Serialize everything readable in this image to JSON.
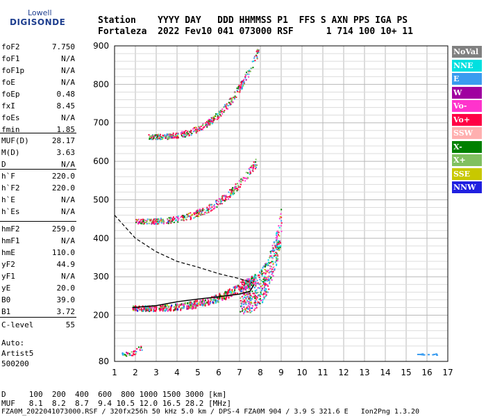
{
  "logo": {
    "brand": "Lowell",
    "name": "DIGISONDE"
  },
  "header": {
    "line1": "Station    YYYY DAY   DDD HHMMSS P1  FFS S AXN PPS IGA PS",
    "line2": "Fortaleza  2022 Fev10 041 073000 RSF      1 714 100 10+ 11"
  },
  "params": [
    {
      "name": "foF2",
      "value": "7.750"
    },
    {
      "name": "foF1",
      "value": "N/A"
    },
    {
      "name": "foF1p",
      "value": "N/A"
    },
    {
      "name": "foE",
      "value": "N/A"
    },
    {
      "name": "foEp",
      "value": "0.48"
    },
    {
      "name": "fxI",
      "value": "8.45"
    },
    {
      "name": "foEs",
      "value": "N/A"
    },
    {
      "name": "fmin",
      "value": "1.85"
    },
    {
      "name": "MUF(D)",
      "value": "28.17"
    },
    {
      "name": "M(D)",
      "value": "3.63"
    },
    {
      "name": "D",
      "value": "N/A"
    },
    {
      "name": "h`F",
      "value": "220.0"
    },
    {
      "name": "h`F2",
      "value": "220.0"
    },
    {
      "name": "h`E",
      "value": "N/A"
    },
    {
      "name": "h`Es",
      "value": "N/A"
    },
    {
      "name": "hmF2",
      "value": "259.0"
    },
    {
      "name": "hmF1",
      "value": "N/A"
    },
    {
      "name": "hmE",
      "value": "110.0"
    },
    {
      "name": "yF2",
      "value": "44.9"
    },
    {
      "name": "yF1",
      "value": "N/A"
    },
    {
      "name": "yE",
      "value": "20.0"
    },
    {
      "name": "B0",
      "value": "39.0"
    },
    {
      "name": "B1",
      "value": "3.72"
    },
    {
      "name": "C-level",
      "value": "55"
    }
  ],
  "auto": {
    "line1": "Auto:",
    "line2": "Artist5",
    "line3": "500200"
  },
  "legend": [
    {
      "label": "NoVal",
      "color": "#808080"
    },
    {
      "label": "NNE",
      "color": "#00e0e0"
    },
    {
      "label": "E",
      "color": "#3a9cf0"
    },
    {
      "label": "W",
      "color": "#a000a0"
    },
    {
      "label": "Vo-",
      "color": "#ff33cc"
    },
    {
      "label": "Vo+",
      "color": "#ff0044"
    },
    {
      "label": "SSW",
      "color": "#ffb0b0"
    },
    {
      "label": "X-",
      "color": "#008000"
    },
    {
      "label": "X+",
      "color": "#80c060"
    },
    {
      "label": "SSE",
      "color": "#c8c800"
    },
    {
      "label": "NNW",
      "color": "#2020e0"
    }
  ],
  "footer": {
    "d_row": "D     100  200  400  600  800 1000 1500 3000 [km]",
    "muf_row": "MUF   8.1  8.2  8.7  9.4 10.5 12.0 16.5 28.2 [MHz]",
    "file_row": "FZA0M_2022041073000.RSF / 320fx256h 50 kHz 5.0 km / DPS-4 FZA0M 904 / 3.9 S 321.6 E   Ion2Png 1.3.20"
  },
  "chart_data": {
    "type": "scatter",
    "xlabel": "",
    "ylabel": "",
    "xlim": [
      1,
      17
    ],
    "ylim": [
      80,
      900
    ],
    "x_ticks": [
      1,
      2,
      3,
      4,
      5,
      6,
      7,
      8,
      9,
      10,
      11,
      12,
      13,
      14,
      15,
      16,
      17
    ],
    "y_ticks": [
      200,
      300,
      400,
      500,
      600,
      700,
      800,
      900
    ],
    "y_tick_bottom_label": "80",
    "grid": true,
    "traces": [
      {
        "name": "O-trace first hop",
        "x_range": [
          1.85,
          7.75
        ],
        "h_start": 220,
        "h_end": 300
      },
      {
        "name": "second hop",
        "x_range": [
          2.0,
          7.8
        ],
        "h_start": 445,
        "h_end": 600
      },
      {
        "name": "third hop",
        "x_range": [
          2.6,
          7.9
        ],
        "h_start": 665,
        "h_end": 890
      },
      {
        "name": "spread F",
        "x_range": [
          7.0,
          9.0
        ],
        "h_start": 250,
        "h_end": 440
      },
      {
        "name": "low echoes",
        "x_range": [
          1.3,
          2.3
        ],
        "h_start": 100,
        "h_end": 120
      },
      {
        "name": "interference",
        "x_range": [
          15.4,
          16.5
        ],
        "h_start": 100,
        "h_end": 100
      }
    ],
    "profile_curve": [
      [
        1.85,
        220
      ],
      [
        3,
        225
      ],
      [
        4,
        235
      ],
      [
        5,
        242
      ],
      [
        6,
        248
      ],
      [
        7,
        255
      ],
      [
        7.5,
        262
      ],
      [
        7.7,
        280
      ]
    ],
    "muf_curve": [
      [
        1,
        460
      ],
      [
        2,
        400
      ],
      [
        3,
        365
      ],
      [
        4,
        340
      ],
      [
        5,
        325
      ],
      [
        6,
        308
      ],
      [
        7,
        295
      ],
      [
        7.6,
        285
      ]
    ]
  }
}
